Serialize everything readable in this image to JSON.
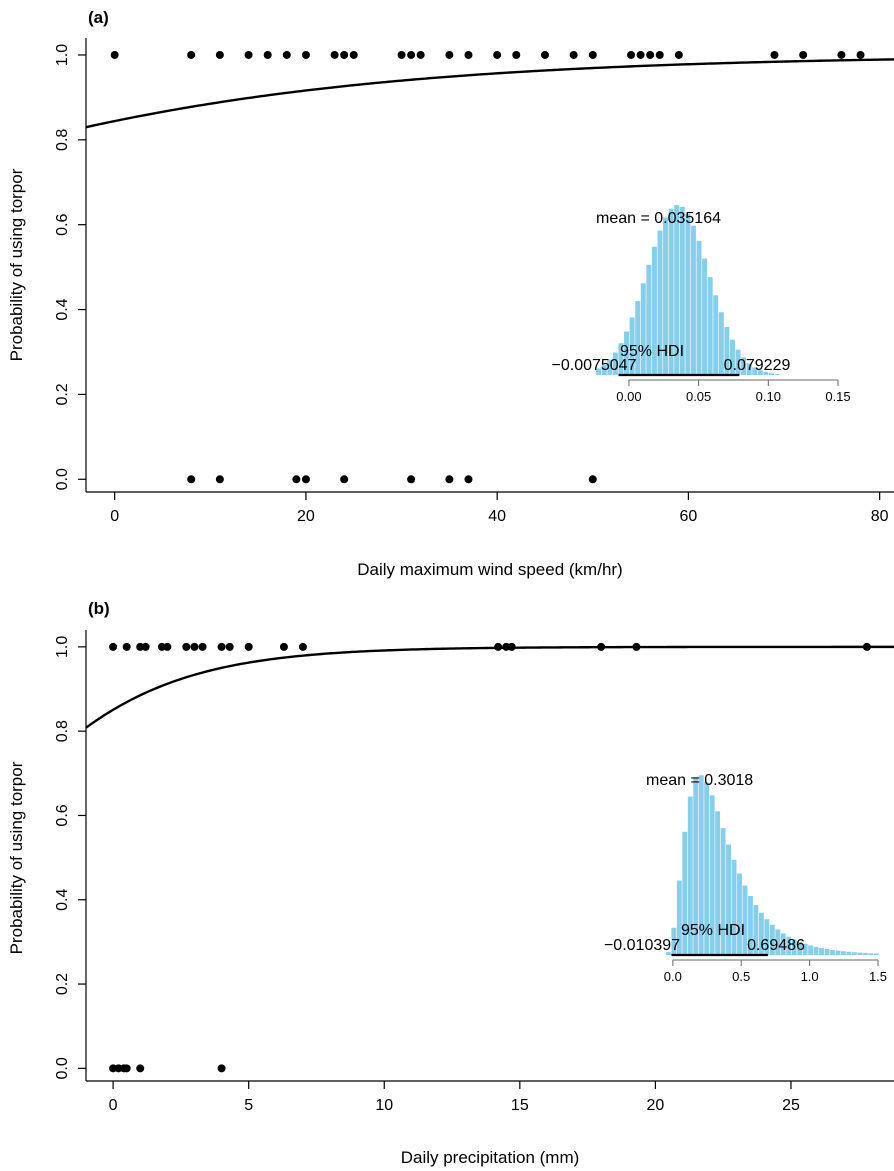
{
  "chart_data": [
    {
      "type": "scatter",
      "panel_label": "(a)",
      "xlabel": "Daily maximum wind speed (km/hr)",
      "ylabel": "Probability of using torpor",
      "xlim": [
        -3,
        81.5
      ],
      "ylim": [
        -0.03,
        1.04
      ],
      "xticks": [
        0,
        20,
        40,
        60,
        80
      ],
      "yticks": [
        0.0,
        0.2,
        0.4,
        0.6,
        0.8,
        1.0
      ],
      "ytick_labels": [
        "0.0",
        "0.2",
        "0.4",
        "0.6",
        "0.8",
        "1.0"
      ],
      "points_y1": [
        0,
        8,
        11,
        14,
        16,
        18,
        20,
        23,
        24,
        25,
        30,
        31,
        32,
        35,
        37,
        40,
        42,
        45,
        48,
        50,
        54,
        55,
        56,
        57,
        59,
        69,
        72,
        76,
        78
      ],
      "points_y0": [
        8,
        11,
        19,
        20,
        24,
        31,
        35,
        37,
        50
      ],
      "curve": {
        "intercept": 1.69,
        "slope": 0.035164
      },
      "inset": {
        "mean_label": "mean = 0.035164",
        "hdi_label": "95% HDI",
        "hdi_low_label": "−0.0075047",
        "hdi_high_label": "0.079229",
        "hdi": [
          -0.0075047,
          0.079229
        ],
        "mean": 0.035164,
        "sd": 0.0222,
        "xlim": [
          -0.01,
          0.15
        ],
        "xticks": [
          0.0,
          0.05,
          0.1,
          0.15
        ],
        "xtick_labels": [
          "0.00",
          "0.05",
          "0.10",
          "0.15"
        ],
        "skew": 0,
        "bin_width": 0.004,
        "bar_color": "#87ceeb"
      }
    },
    {
      "type": "scatter",
      "panel_label": "(b)",
      "xlabel": "Daily precipitation (mm)",
      "ylabel": "Probability of using torpor",
      "xlim": [
        -1,
        28.8
      ],
      "ylim": [
        -0.03,
        1.04
      ],
      "xticks": [
        0,
        5,
        10,
        15,
        20,
        25
      ],
      "yticks": [
        0.0,
        0.2,
        0.4,
        0.6,
        0.8,
        1.0
      ],
      "ytick_labels": [
        "0.0",
        "0.2",
        "0.4",
        "0.6",
        "0.8",
        "1.0"
      ],
      "points_y1": [
        0,
        0.5,
        1,
        1.2,
        1.8,
        2,
        2.7,
        3,
        3.3,
        4,
        4.3,
        5,
        6.3,
        7,
        14.2,
        14.5,
        14.7,
        18,
        19.3,
        27.8
      ],
      "points_y0": [
        0,
        0.2,
        0.4,
        0.5,
        1,
        4
      ],
      "curve": {
        "intercept": 1.74,
        "slope": 0.3018
      },
      "inset": {
        "mean_label": "mean = 0.3018",
        "hdi_label": "95% HDI",
        "hdi_low_label": "−0.010397",
        "hdi_high_label": "0.69486",
        "hdi": [
          -0.010397,
          0.69486
        ],
        "mean": 0.3018,
        "mode": 0.2,
        "xlim": [
          -0.05,
          1.5
        ],
        "xticks": [
          0.0,
          0.5,
          1.0,
          1.5
        ],
        "xtick_labels": [
          "0.0",
          "0.5",
          "1.0",
          "1.5"
        ],
        "skew": 1,
        "bin_width": 0.04,
        "bar_color": "#87ceeb"
      }
    }
  ]
}
